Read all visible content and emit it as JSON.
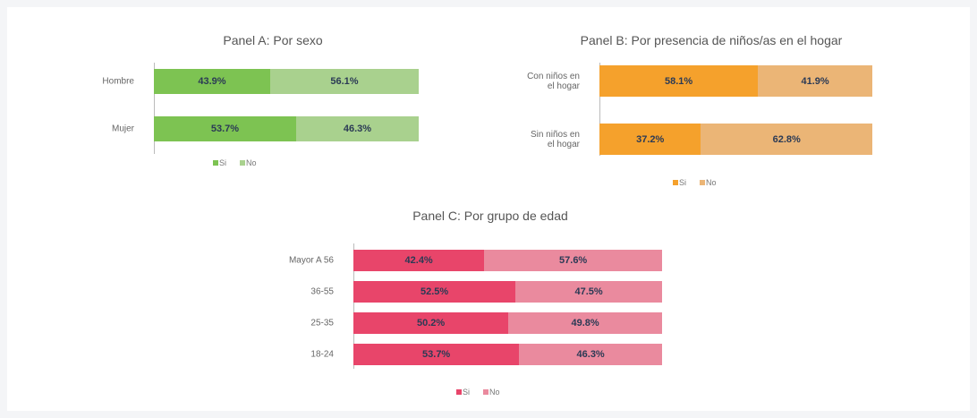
{
  "chart_data": [
    {
      "type": "stacked-bar-horizontal",
      "title": "Panel A: Por sexo",
      "categories": [
        "Hombre",
        "Mujer"
      ],
      "series": [
        {
          "name": "Si",
          "color": "#7dc352",
          "values": [
            43.9,
            53.7
          ],
          "value_labels": [
            "43.9%",
            "53.7%"
          ]
        },
        {
          "name": "No",
          "color": "#a9d18e",
          "values": [
            56.1,
            46.3
          ],
          "value_labels": [
            "56.1%",
            "46.3%"
          ]
        }
      ]
    },
    {
      "type": "stacked-bar-horizontal",
      "title": "Panel B: Por presencia de niños/as en el hogar",
      "categories": [
        "Con niños en\nel hogar",
        "Sin niños en\nel hogar"
      ],
      "series": [
        {
          "name": "Si",
          "color": "#f5a12c",
          "values": [
            58.1,
            37.2
          ],
          "value_labels": [
            "58.1%",
            "37.2%"
          ]
        },
        {
          "name": "No",
          "color": "#ebb576",
          "values": [
            41.9,
            62.8
          ],
          "value_labels": [
            "41.9%",
            "62.8%"
          ]
        }
      ]
    },
    {
      "type": "stacked-bar-horizontal",
      "title": "Panel C: Por grupo de edad",
      "categories": [
        "Mayor A 56",
        "36-55",
        "25-35",
        "18-24"
      ],
      "series": [
        {
          "name": "Si",
          "color": "#e8456a",
          "values": [
            42.4,
            52.5,
            50.2,
            53.7
          ],
          "value_labels": [
            "42.4%",
            "52.5%",
            "50.2%",
            "53.7%"
          ]
        },
        {
          "name": "No",
          "color": "#ea8a9e",
          "values": [
            57.6,
            47.5,
            49.8,
            46.3
          ],
          "value_labels": [
            "57.6%",
            "47.5%",
            "49.8%",
            "46.3%"
          ]
        }
      ]
    }
  ]
}
